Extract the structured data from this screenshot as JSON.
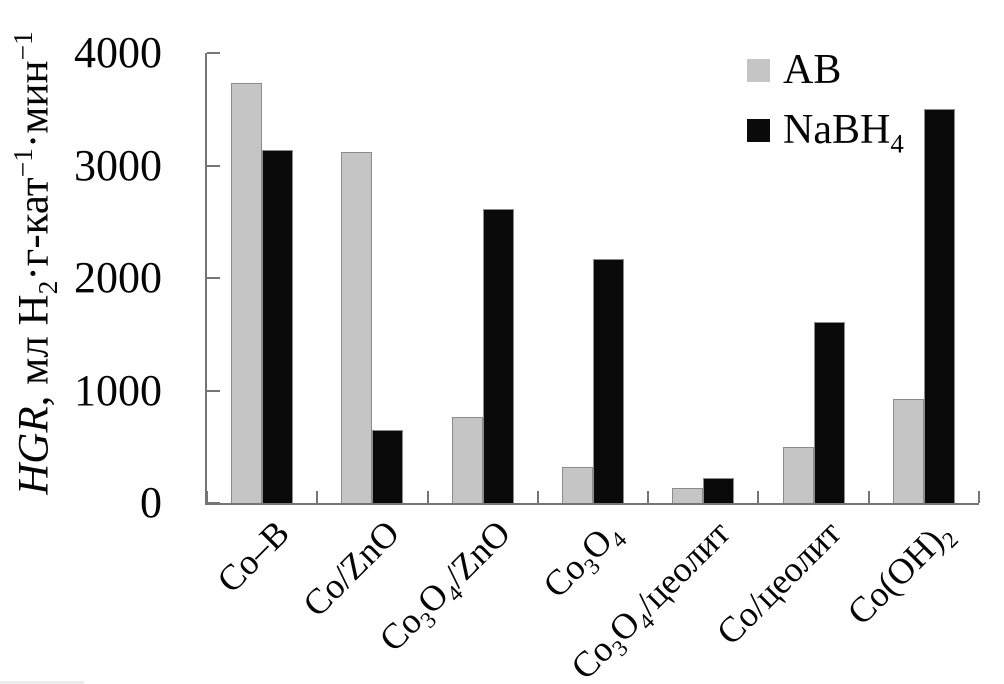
{
  "chart_data": {
    "type": "bar",
    "title": "",
    "categories": [
      "Co–B",
      "Co/ZnO",
      "Co3O4/ZnO",
      "Co3O4",
      "Co3O4/цеолит",
      "Co/цеолит",
      "Co(OH)2"
    ],
    "series": [
      {
        "name": "AB",
        "color": "#c5c5c5",
        "values": [
          3730,
          3120,
          760,
          320,
          130,
          500,
          920
        ]
      },
      {
        "name": "NaBH4",
        "color": "#0a0a0a",
        "values": [
          3140,
          650,
          2610,
          2170,
          220,
          1610,
          3500
        ]
      }
    ],
    "xlabel": "",
    "ylabel": "HGR, мл H2·г-кат−1·мин−1",
    "ylim": [
      0,
      4000
    ],
    "yticks": [
      4000,
      3000,
      2000,
      1000,
      0
    ],
    "ytick_labels": [
      "4000",
      "3000",
      "2000",
      "1000",
      "0"
    ],
    "grid": false,
    "legend_position": "top-right",
    "axis_color": "#757575"
  },
  "rich": {
    "ylabel_segments": [
      {
        "t": "HGR",
        "italic": true
      },
      ", мл H",
      {
        "sub": "2"
      },
      "·г-кат",
      {
        "sup": "−1"
      },
      "·мин",
      {
        "sup": "−1"
      }
    ],
    "legend": [
      [
        "AB"
      ],
      [
        "NaBH",
        {
          "sub": "4"
        }
      ]
    ],
    "categories": [
      [
        "Co–B"
      ],
      [
        "Co/ZnO"
      ],
      [
        "Co",
        {
          "sub": "3"
        },
        "O",
        {
          "sub": "4"
        },
        "/ZnO"
      ],
      [
        "Co",
        {
          "sub": "3"
        },
        "O",
        {
          "sub": "4"
        }
      ],
      [
        "Co",
        {
          "sub": "3"
        },
        "O",
        {
          "sub": "4"
        },
        "/цеолит"
      ],
      [
        "Co/цеолит"
      ],
      [
        "Co(OH)",
        {
          "sub": "2"
        }
      ]
    ]
  }
}
